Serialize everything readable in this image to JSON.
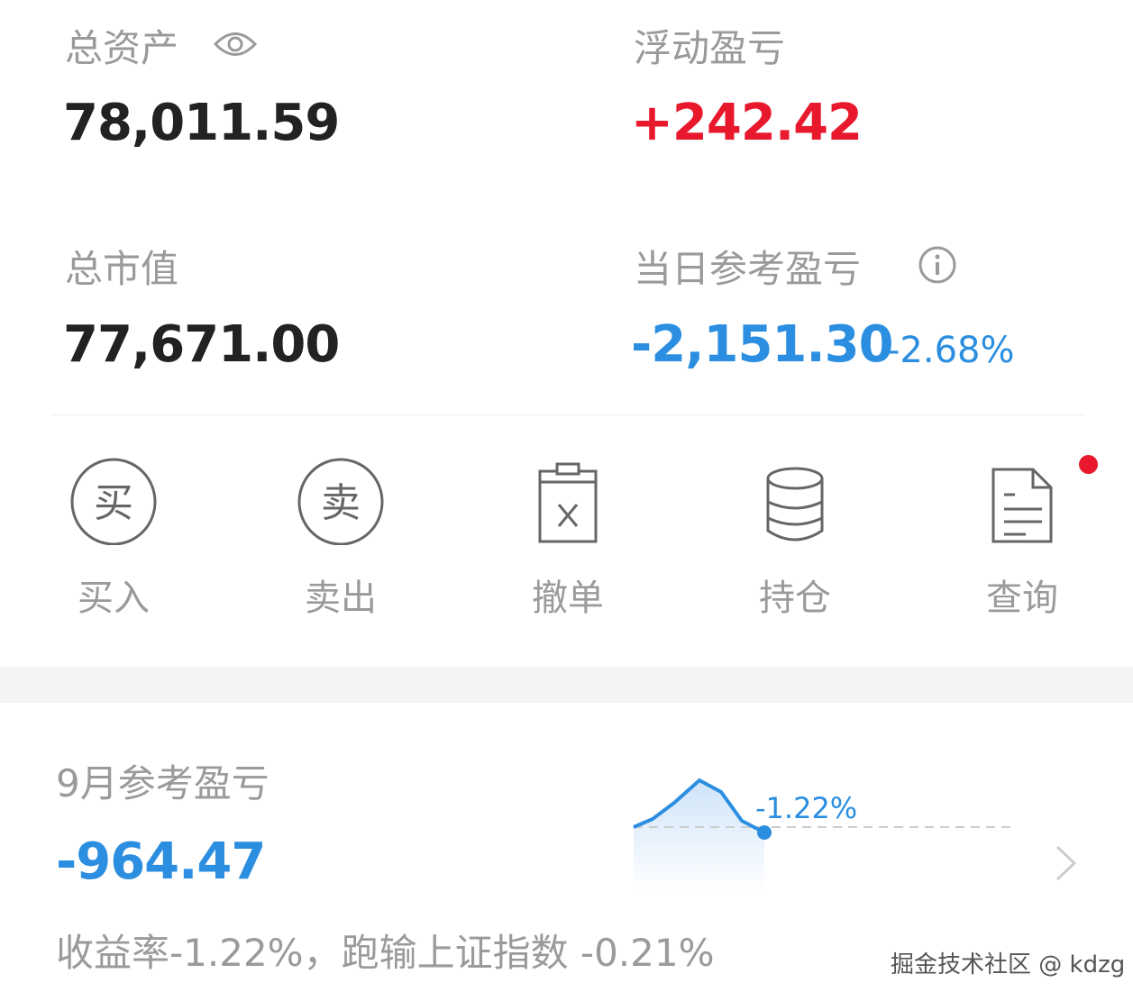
{
  "summary": {
    "total_assets_label": "总资产",
    "total_assets_value": "78,011.59",
    "floating_pnl_label": "浮动盈亏",
    "floating_pnl_value": "+242.42",
    "market_value_label": "总市值",
    "market_value_value": "77,671.00",
    "daily_pnl_label": "当日参考盈亏",
    "daily_pnl_value": "-2,151.30",
    "daily_pnl_pct": "-2.68%"
  },
  "actions": [
    {
      "label": "买入",
      "icon": "buy-icon",
      "glyph": "买"
    },
    {
      "label": "卖出",
      "icon": "sell-icon",
      "glyph": "卖"
    },
    {
      "label": "撤单",
      "icon": "cancel-order-icon"
    },
    {
      "label": "持仓",
      "icon": "holdings-icon"
    },
    {
      "label": "查询",
      "icon": "query-icon",
      "badge": true
    }
  ],
  "monthly": {
    "title": "9月参考盈亏",
    "value": "-964.47",
    "sparkline_label": "-1.22%",
    "description": "收益率-1.22%，跑输上证指数 -0.21%"
  },
  "watermark": "掘金技术社区 @ kdzg",
  "colors": {
    "up": "#e8192c",
    "down": "#2b8ee0",
    "badge": "#e8192c"
  }
}
